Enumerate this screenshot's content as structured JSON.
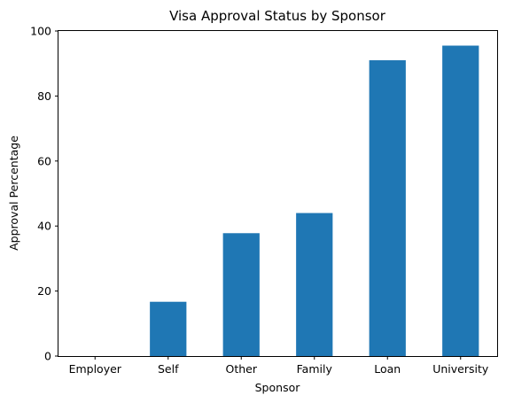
{
  "chart_data": {
    "type": "bar",
    "title": "Visa Approval Status by Sponsor",
    "xlabel": "Sponsor",
    "ylabel": "Approval Percentage",
    "categories": [
      "Employer",
      "Self",
      "Other",
      "Family",
      "Loan",
      "University"
    ],
    "values": [
      0,
      16.7,
      37.8,
      44.0,
      91.0,
      95.5
    ],
    "yticks": [
      "0",
      "20",
      "40",
      "60",
      "80",
      "100"
    ],
    "ylim": [
      0,
      100
    ],
    "grid": false,
    "bar_color": "#1f77b4"
  }
}
